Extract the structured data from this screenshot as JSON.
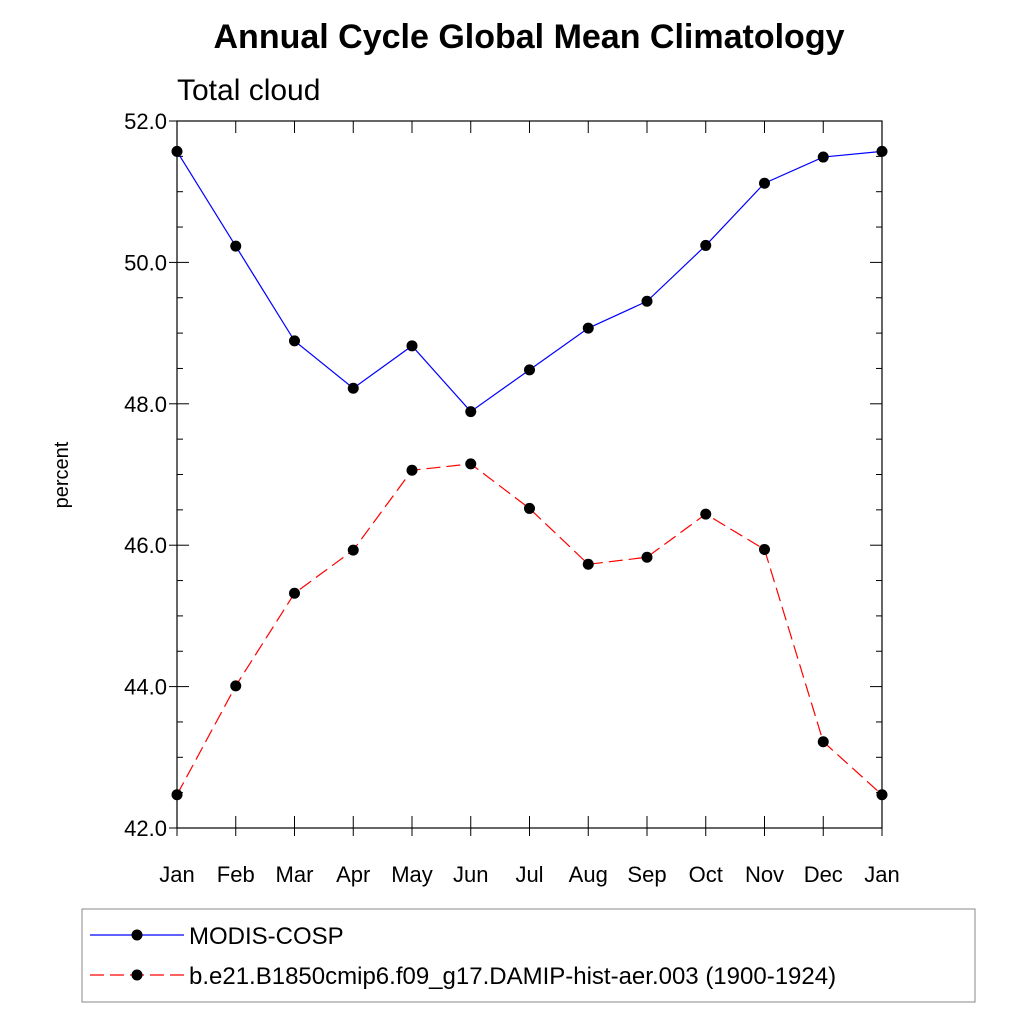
{
  "chart_data": {
    "type": "line",
    "title": "Annual Cycle Global Mean Climatology",
    "subtitle": "Total cloud",
    "xlabel": "",
    "ylabel": "percent",
    "categories": [
      "Jan",
      "Feb",
      "Mar",
      "Apr",
      "May",
      "Jun",
      "Jul",
      "Aug",
      "Sep",
      "Oct",
      "Nov",
      "Dec",
      "Jan"
    ],
    "ylim": [
      42.0,
      52.0
    ],
    "y_ticks": [
      "42.0",
      "44.0",
      "46.0",
      "48.0",
      "50.0",
      "52.0"
    ],
    "grid": false,
    "legend_position": "bottom",
    "series": [
      {
        "name": "MODIS-COSP",
        "color": "#0000ff",
        "line_style": "solid",
        "values": [
          51.57,
          50.23,
          48.89,
          48.22,
          48.82,
          47.89,
          48.48,
          49.07,
          49.45,
          50.24,
          51.12,
          51.49,
          51.57
        ]
      },
      {
        "name": "b.e21.B1850cmip6.f09_g17.DAMIP-hist-aer.003 (1900-1924)",
        "color": "#ff0000",
        "line_style": "dashed",
        "values": [
          42.47,
          44.01,
          45.32,
          45.93,
          47.06,
          47.15,
          46.52,
          45.73,
          45.83,
          46.44,
          45.94,
          43.22,
          42.47
        ]
      }
    ]
  }
}
